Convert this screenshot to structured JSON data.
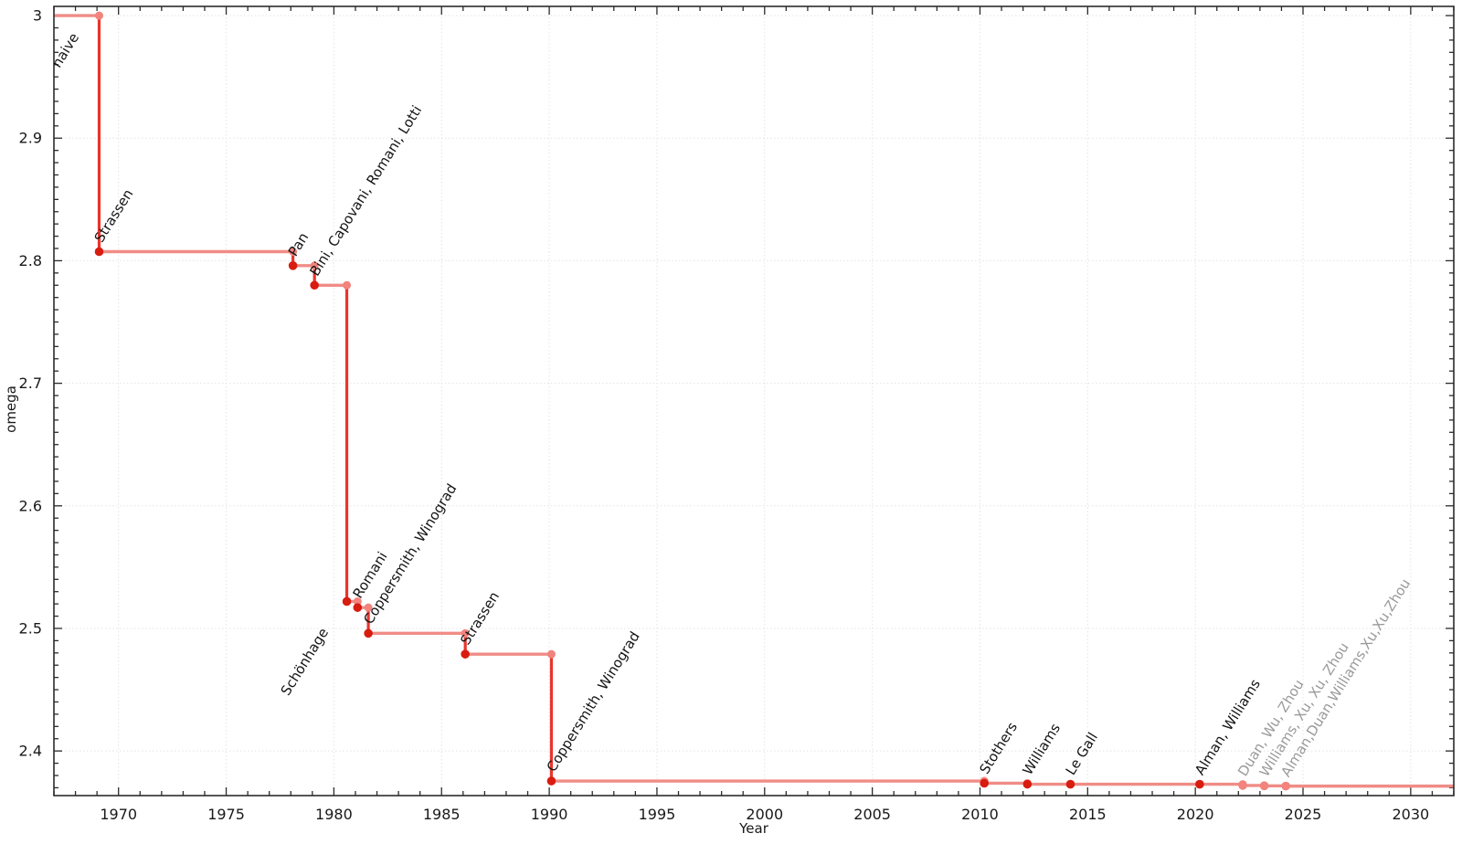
{
  "page": {
    "background": "#ffffff"
  },
  "chart_data": {
    "type": "line",
    "subtype": "step",
    "title": "",
    "xlabel": "Year",
    "ylabel": "omega",
    "xlim": [
      1967,
      2032
    ],
    "ylim": [
      2.3636,
      3.0075
    ],
    "grid": true,
    "legend": "none",
    "x_ticks": [
      1970,
      1975,
      1980,
      1985,
      1990,
      1995,
      2000,
      2005,
      2010,
      2015,
      2020,
      2025,
      2030
    ],
    "x_tick_labels": [
      "1970",
      "1975",
      "1980",
      "1985",
      "1990",
      "1995",
      "2000",
      "2005",
      "2010",
      "2015",
      "2020",
      "2025",
      "2030"
    ],
    "y_ticks": [
      3,
      2.9,
      2.8,
      2.7,
      2.6,
      2.5,
      2.4
    ],
    "y_tick_labels": [
      "3",
      "2.9",
      "2.8",
      "2.7",
      "2.6",
      "2.5",
      "2.4"
    ],
    "x_minor_tick_step": 1,
    "y_minor_tick_step": 0.01,
    "line_extends_to": 2032,
    "events": [
      {
        "label": "naive",
        "year": 1967.0,
        "omega": 3,
        "recent": false
      },
      {
        "label": "Strassen",
        "year": 1969.1,
        "omega": 2.8074,
        "recent": false
      },
      {
        "label": "Pan",
        "year": 1978.1,
        "omega": 2.796,
        "recent": false
      },
      {
        "label": "Bini, Capovani, Romani, Lotti",
        "year": 1979.1,
        "omega": 2.78,
        "recent": false
      },
      {
        "label": "Schönhage",
        "year": 1980.6,
        "omega": 2.522,
        "recent": false
      },
      {
        "label": "Romani",
        "year": 1981.1,
        "omega": 2.517,
        "recent": false
      },
      {
        "label": "Coppersmith, Winograd",
        "year": 1981.6,
        "omega": 2.496,
        "recent": false
      },
      {
        "label": "Strassen",
        "year": 1986.1,
        "omega": 2.479,
        "recent": false
      },
      {
        "label": "Coppersmith, Winograd",
        "year": 1990.1,
        "omega": 2.3755,
        "recent": false
      },
      {
        "label": "Stothers",
        "year": 2010.2,
        "omega": 2.3737,
        "recent": false
      },
      {
        "label": "Williams",
        "year": 2012.2,
        "omega": 2.3729,
        "recent": false
      },
      {
        "label": "Le Gall",
        "year": 2014.2,
        "omega": 2.3728639,
        "recent": false
      },
      {
        "label": "Alman, Williams",
        "year": 2020.2,
        "omega": 2.3728596,
        "recent": false
      },
      {
        "label": "Duan, Wu, Zhou",
        "year": 2022.2,
        "omega": 2.371866,
        "recent": true
      },
      {
        "label": "Williams, Xu, Xu, Zhou",
        "year": 2023.2,
        "omega": 2.371552,
        "recent": true
      },
      {
        "label": "Alman,Duan,Williams,Xu,Xu,Zhou",
        "year": 2024.2,
        "omega": 2.371339,
        "recent": true
      }
    ],
    "style": {
      "step_line_color": "#f08c86",
      "drop_line_color": "#e8352c",
      "marker_color": "#d91c10",
      "corner_marker_color": "#f2837d",
      "recent_marker_color": "#f2837d",
      "label_color": "#141414",
      "recent_label_color": "#9a9a9a",
      "grid_color": "#e4e4e4",
      "axis_color": "#2b2b2b"
    }
  }
}
